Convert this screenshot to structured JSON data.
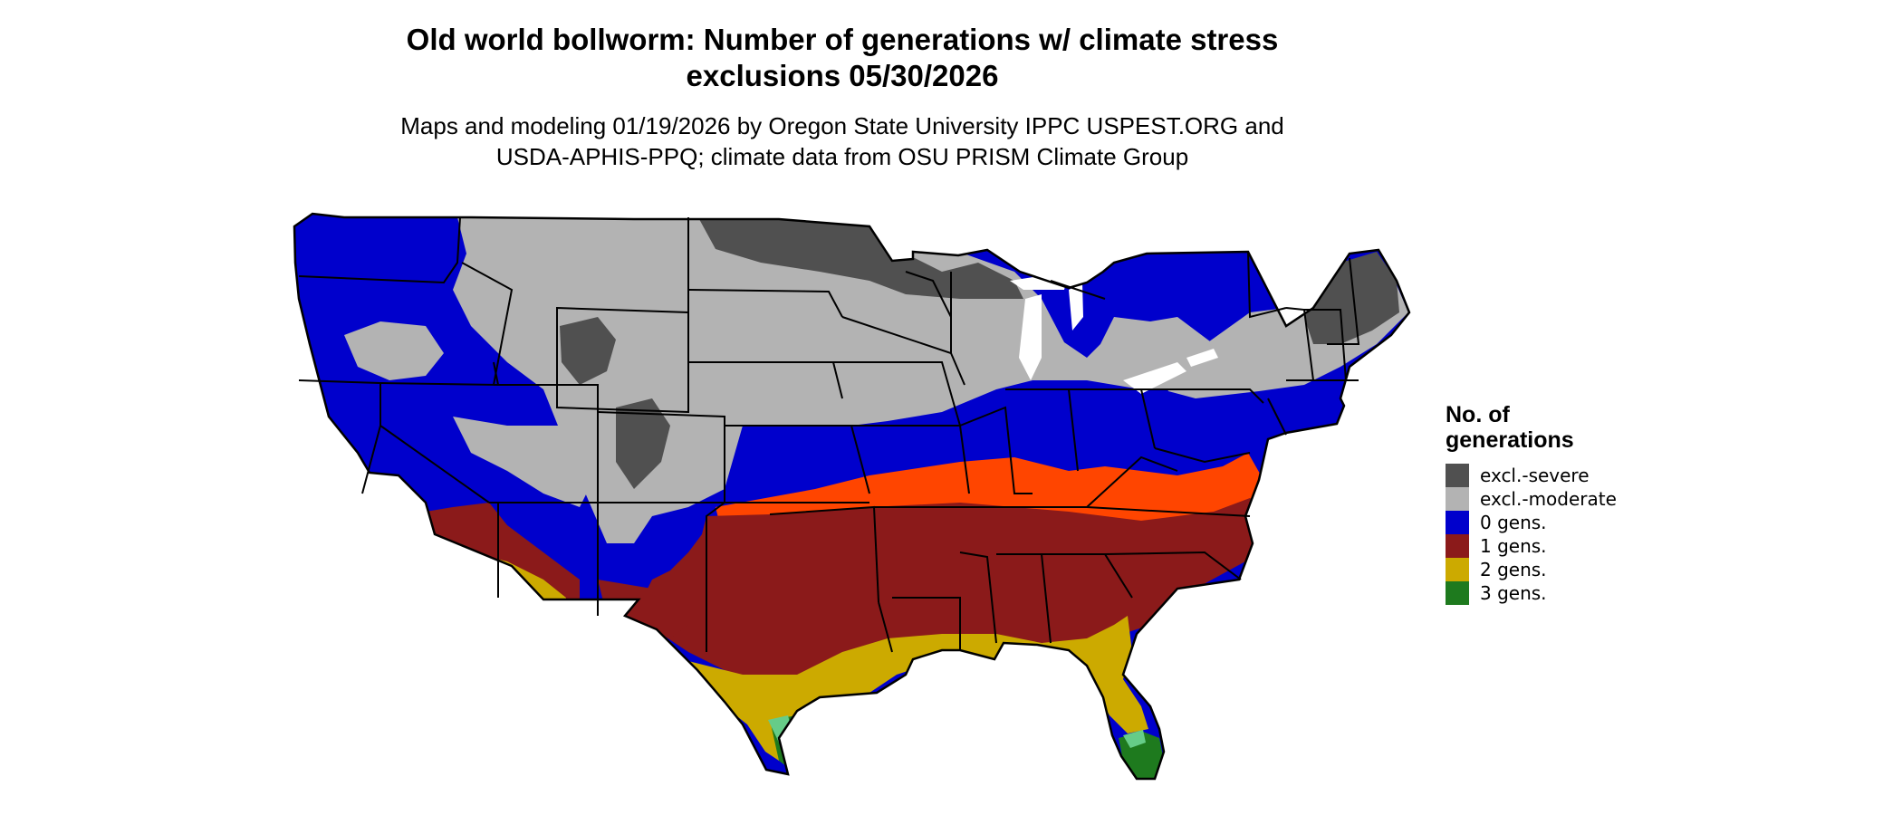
{
  "title_line1": "Old world bollworm: Number of generations w/ climate stress",
  "title_line2": "exclusions 05/30/2026",
  "subtitle_line1": "Maps and modeling 01/19/2026 by Oregon State University IPPC USPEST.ORG and",
  "subtitle_line2": "USDA-APHIS-PPQ; climate data from OSU PRISM Climate Group",
  "legend": {
    "title_line1": "No. of",
    "title_line2": "generations",
    "items": [
      {
        "label": "excl.-severe",
        "color": "#505050"
      },
      {
        "label": "excl.-moderate",
        "color": "#b3b3b3"
      },
      {
        "label": "0 gens.",
        "color": "#0000cc"
      },
      {
        "label": "1 gens.",
        "color": "#8b1a1a"
      },
      {
        "label": "2 gens.",
        "color": "#ccaa00"
      },
      {
        "label": "3 gens.",
        "color": "#1e7a1e"
      }
    ]
  },
  "map_colors": {
    "severe": "#505050",
    "moderate": "#b3b3b3",
    "zero": "#0000cc",
    "one": "#8b1a1a",
    "one_warm": "#ff4500",
    "two": "#ccaa00",
    "three": "#1e7a1e",
    "three_light": "#66cc88",
    "lakes": "#ffffff",
    "borders": "#000000"
  }
}
